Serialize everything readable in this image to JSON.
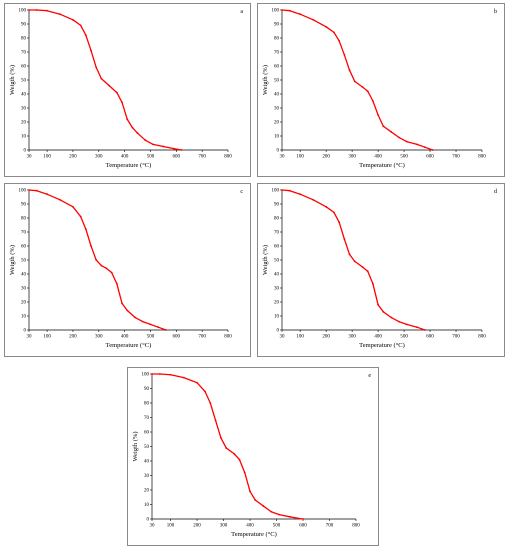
{
  "chart_data": [
    {
      "type": "line",
      "panel_label": "a",
      "xlabel": "Temperature (°C)",
      "ylabel": "Weigth (%)",
      "xlim": [
        30,
        800
      ],
      "ylim": [
        0,
        100
      ],
      "xticks": [
        30,
        100,
        200,
        300,
        400,
        500,
        600,
        700,
        800
      ],
      "yticks": [
        0,
        10,
        20,
        30,
        40,
        50,
        60,
        70,
        80,
        90,
        100
      ],
      "line_color": "#ff0000",
      "x": [
        30,
        60,
        100,
        150,
        200,
        230,
        250,
        270,
        290,
        310,
        340,
        370,
        390,
        410,
        430,
        450,
        480,
        510,
        550,
        590,
        620
      ],
      "y": [
        100,
        100,
        99.5,
        97,
        93,
        89,
        82,
        71,
        59,
        51,
        46,
        41,
        34,
        22,
        16,
        12,
        7,
        4,
        2.5,
        1,
        0
      ]
    },
    {
      "type": "line",
      "panel_label": "b",
      "xlabel": "Temperature (°C)",
      "ylabel": "Weigth (%)",
      "xlim": [
        30,
        800
      ],
      "ylim": [
        0,
        100
      ],
      "xticks": [
        30,
        100,
        200,
        300,
        400,
        500,
        600,
        700,
        800
      ],
      "yticks": [
        0,
        10,
        20,
        30,
        40,
        50,
        60,
        70,
        80,
        90,
        100
      ],
      "line_color": "#ff0000",
      "x": [
        30,
        60,
        100,
        150,
        200,
        230,
        250,
        270,
        290,
        310,
        340,
        360,
        380,
        400,
        420,
        450,
        480,
        510,
        550,
        580,
        610
      ],
      "y": [
        100,
        99.5,
        97,
        93,
        88,
        84,
        78,
        68,
        57,
        49,
        45,
        42,
        35,
        25,
        17,
        13,
        9,
        6,
        4,
        2,
        0
      ]
    },
    {
      "type": "line",
      "panel_label": "c",
      "xlabel": "Temperature (°C)",
      "ylabel": "Weigth (%)",
      "xlim": [
        30,
        800
      ],
      "ylim": [
        0,
        100
      ],
      "xticks": [
        30,
        100,
        200,
        300,
        400,
        500,
        600,
        700,
        800
      ],
      "yticks": [
        0,
        10,
        20,
        30,
        40,
        50,
        60,
        70,
        80,
        90,
        100
      ],
      "line_color": "#ff0000",
      "x": [
        30,
        60,
        100,
        150,
        200,
        230,
        250,
        270,
        290,
        310,
        330,
        350,
        370,
        390,
        410,
        440,
        470,
        500,
        530,
        560
      ],
      "y": [
        100,
        99.5,
        97,
        93,
        88,
        81,
        72,
        60,
        50,
        46,
        44,
        41,
        33,
        19,
        14,
        9,
        6,
        4,
        2,
        0
      ]
    },
    {
      "type": "line",
      "panel_label": "d",
      "xlabel": "Temperature (°C)",
      "ylabel": "Weigth (%)",
      "xlim": [
        30,
        800
      ],
      "ylim": [
        0,
        100
      ],
      "xticks": [
        30,
        100,
        200,
        300,
        400,
        500,
        600,
        700,
        800
      ],
      "yticks": [
        0,
        10,
        20,
        30,
        40,
        50,
        60,
        70,
        80,
        90,
        100
      ],
      "line_color": "#ff0000",
      "x": [
        30,
        60,
        100,
        150,
        200,
        230,
        250,
        270,
        290,
        310,
        340,
        360,
        380,
        400,
        420,
        450,
        480,
        510,
        550,
        580
      ],
      "y": [
        100,
        99.5,
        97,
        93,
        88,
        84,
        77,
        65,
        54,
        49,
        45,
        42,
        33,
        18,
        13,
        9,
        6,
        4,
        2,
        0
      ]
    },
    {
      "type": "line",
      "panel_label": "e",
      "xlabel": "Temperature (°C)",
      "ylabel": "Weigth (%)",
      "xlim": [
        30,
        800
      ],
      "ylim": [
        0,
        100
      ],
      "xticks": [
        30,
        100,
        200,
        300,
        400,
        500,
        600,
        700,
        800
      ],
      "yticks": [
        0,
        10,
        20,
        30,
        40,
        50,
        60,
        70,
        80,
        90,
        100
      ],
      "line_color": "#ff0000",
      "x": [
        30,
        60,
        100,
        150,
        200,
        230,
        250,
        270,
        290,
        310,
        340,
        360,
        380,
        400,
        420,
        450,
        480,
        510,
        550,
        580,
        600
      ],
      "y": [
        100,
        100,
        99.5,
        97.5,
        94,
        88,
        80,
        68,
        56,
        49,
        45,
        41,
        32,
        19,
        13,
        9,
        5,
        3,
        1.5,
        0.5,
        0
      ]
    }
  ]
}
